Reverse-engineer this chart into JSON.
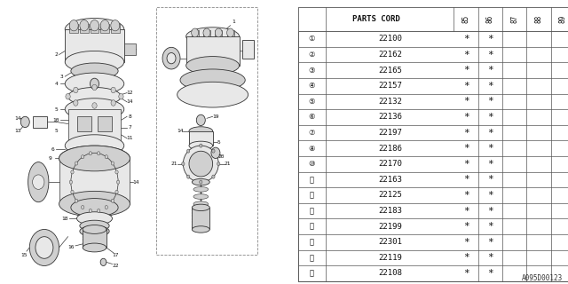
{
  "part_numbers": [
    "22100",
    "22162",
    "22165",
    "22157",
    "22132",
    "22136",
    "22197",
    "22186",
    "22170",
    "22163",
    "22125",
    "22183",
    "22199",
    "22301",
    "22119",
    "22108"
  ],
  "item_labels": [
    "①",
    "②",
    "③",
    "④",
    "⑤",
    "⑥",
    "⑦",
    "⑧",
    "⑩",
    "⑪",
    "⑫",
    "⑬",
    "⑭",
    "⑮",
    "⑯",
    "⑰"
  ],
  "col_headers": [
    "85",
    "86",
    "87",
    "88",
    "89"
  ],
  "star_cols": [
    0,
    1
  ],
  "table_header": "PARTS CORD",
  "bg_color": "#ffffff",
  "line_color": "#000000",
  "text_color": "#000000",
  "grid_color": "#555555",
  "footnote": "A095D00123",
  "fig_width": 6.4,
  "fig_height": 3.2,
  "dpi": 100
}
